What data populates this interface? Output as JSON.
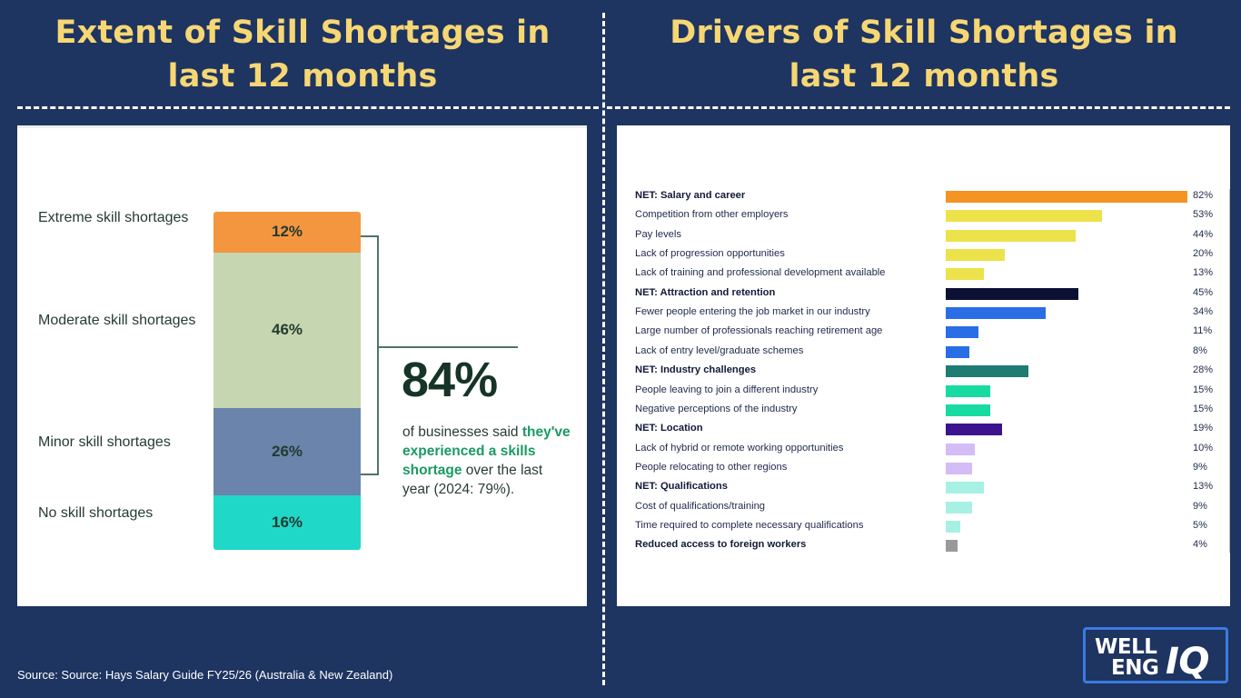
{
  "titles": {
    "left_line1": "Extent of Skill Shortages in",
    "left_line2": "last 12 months",
    "right_line1": "Drivers of Skill Shortages in",
    "right_line2": "last 12 months"
  },
  "extent": {
    "headline": "84%",
    "description": {
      "pre": "of businesses said ",
      "highlight": "they've experienced a skills shortage",
      "post": " over the last year (2024: 79%)."
    },
    "segments": [
      {
        "label": "Extreme skill shortages",
        "value": 12,
        "display": "12%",
        "color": "#f4963f"
      },
      {
        "label": "Moderate skill shortages",
        "value": 46,
        "display": "46%",
        "color": "#c6d6b0"
      },
      {
        "label": "Minor skill shortages",
        "value": 26,
        "display": "26%",
        "color": "#6a84ac"
      },
      {
        "label": "No skill shortages",
        "value": 16,
        "display": "16%",
        "color": "#1fd8c8"
      }
    ]
  },
  "chart_data": [
    {
      "type": "bar",
      "orientation": "stacked-vertical",
      "categories": [
        "Extreme skill shortages",
        "Moderate skill shortages",
        "Minor skill shortages",
        "No skill shortages"
      ],
      "values": [
        12,
        46,
        26,
        16
      ],
      "unit": "%"
    },
    {
      "type": "bar",
      "orientation": "horizontal",
      "rows": [
        {
          "label": "NET: Salary and career",
          "value": 82,
          "display": "82%",
          "net": true,
          "color": "#f49422"
        },
        {
          "label": "Competition from other employers",
          "value": 53,
          "display": "53%",
          "net": false,
          "color": "#ece24a"
        },
        {
          "label": "Pay levels",
          "value": 44,
          "display": "44%",
          "net": false,
          "color": "#ece24a"
        },
        {
          "label": "Lack of progression opportunities",
          "value": 20,
          "display": "20%",
          "net": false,
          "color": "#ece24a"
        },
        {
          "label": "Lack of training and professional development available",
          "value": 13,
          "display": "13%",
          "net": false,
          "color": "#ece24a"
        },
        {
          "label": "NET: Attraction and retention",
          "value": 45,
          "display": "45%",
          "net": true,
          "color": "#0c1034"
        },
        {
          "label": "Fewer people entering the job market in our industry",
          "value": 34,
          "display": "34%",
          "net": false,
          "color": "#2a6ee6"
        },
        {
          "label": "Large number of professionals reaching retirement age",
          "value": 11,
          "display": "11%",
          "net": false,
          "color": "#2a6ee6"
        },
        {
          "label": "Lack of entry level/graduate schemes",
          "value": 8,
          "display": "8%",
          "net": false,
          "color": "#2a6ee6"
        },
        {
          "label": "NET: Industry challenges",
          "value": 28,
          "display": "28%",
          "net": true,
          "color": "#1f7c73"
        },
        {
          "label": "People leaving to join a different industry",
          "value": 15,
          "display": "15%",
          "net": false,
          "color": "#17dba0"
        },
        {
          "label": "Negative perceptions of the industry",
          "value": 15,
          "display": "15%",
          "net": false,
          "color": "#17dba0"
        },
        {
          "label": "NET: Location",
          "value": 19,
          "display": "19%",
          "net": true,
          "color": "#3c128e"
        },
        {
          "label": "Lack of hybrid or remote working opportunities",
          "value": 10,
          "display": "10%",
          "net": false,
          "color": "#d4bcf6"
        },
        {
          "label": "People relocating to other regions",
          "value": 9,
          "display": "9%",
          "net": false,
          "color": "#d4bcf6"
        },
        {
          "label": "NET: Qualifications",
          "value": 13,
          "display": "13%",
          "net": true,
          "color": "#a6f1e3"
        },
        {
          "label": "Cost of qualifications/training",
          "value": 9,
          "display": "9%",
          "net": false,
          "color": "#a6f1e3"
        },
        {
          "label": "Time required to complete necessary qualifications",
          "value": 5,
          "display": "5%",
          "net": false,
          "color": "#a6f1e3"
        },
        {
          "label": "Reduced access to foreign workers",
          "value": 4,
          "display": "4%",
          "net": true,
          "color": "#999999"
        }
      ],
      "xlim": [
        0,
        100
      ],
      "unit": "%"
    }
  ],
  "source": "Source: Source: Hays Salary Guide FY25/26 (Australia & New Zealand)",
  "logo": {
    "line1": "WELL",
    "line2": "ENG",
    "mark": "IQ"
  },
  "colors": {
    "background": "#1e3461",
    "title": "#f6d774",
    "accent_green": "#1a9a63"
  }
}
